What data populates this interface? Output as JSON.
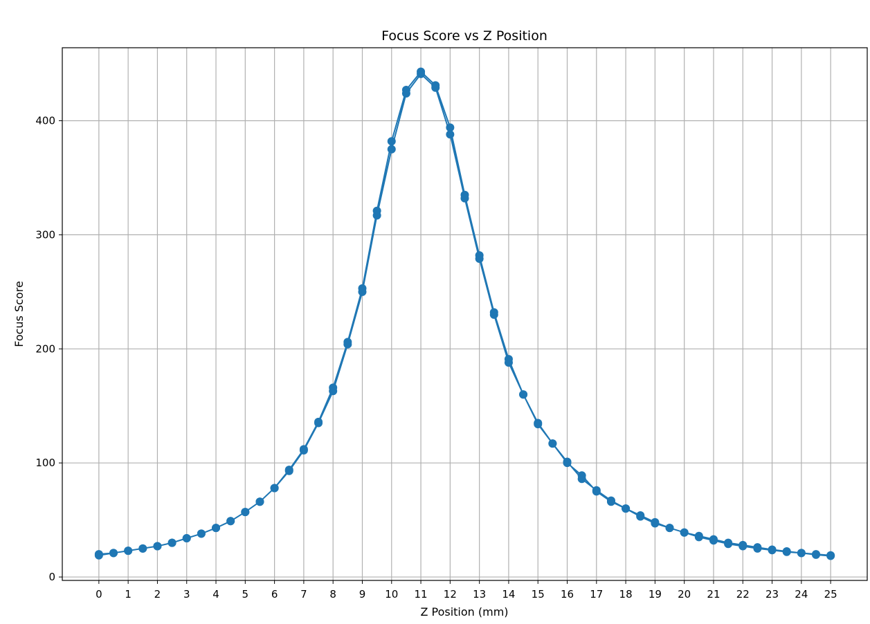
{
  "chart_data": {
    "type": "line",
    "title": "Focus Score vs Z Position",
    "xlabel": "Z Position (mm)",
    "ylabel": "Focus Score",
    "xlim": [
      -1.25,
      26.25
    ],
    "ylim": [
      -3,
      464
    ],
    "xticks": [
      0,
      1,
      2,
      3,
      4,
      5,
      6,
      7,
      8,
      9,
      10,
      11,
      12,
      13,
      14,
      15,
      16,
      17,
      18,
      19,
      20,
      21,
      22,
      23,
      24,
      25
    ],
    "yticks": [
      0,
      100,
      200,
      300,
      400
    ],
    "grid": true,
    "marker": "circle",
    "color": "#1f77b4",
    "series": [
      {
        "x": [
          0,
          0.5,
          1,
          1.5,
          2,
          2.5,
          3,
          3.5,
          4,
          4.5,
          5,
          5.5,
          6,
          6.5,
          7,
          7.5,
          8,
          8.5,
          9,
          9.5,
          10,
          10.5,
          11,
          11.5,
          12,
          12.5,
          13,
          13.5,
          14,
          14.5,
          15,
          15.5,
          16,
          16.5,
          17,
          17.5,
          18,
          18.5,
          19,
          19.5,
          20,
          20.5,
          21,
          21.5,
          22,
          22.5,
          23,
          23.5,
          24,
          24.5,
          25,
          25,
          24.5,
          24,
          23.5,
          23,
          22.5,
          22,
          21.5,
          21,
          20.5,
          20,
          19.5,
          19,
          18.5,
          18,
          17.5,
          17,
          16.5,
          16,
          15.5,
          15,
          14.5,
          14,
          13.5,
          13,
          12.5,
          12,
          11.5,
          11,
          10.5,
          10,
          9.5,
          9,
          8.5,
          8,
          7.5,
          7,
          6.5,
          6,
          5.5,
          5,
          4.5,
          4,
          3.5,
          3,
          2.5,
          2,
          1.5,
          1,
          0.5,
          0
        ],
        "y": [
          20,
          21,
          23,
          25,
          27,
          30,
          34,
          38,
          43,
          49,
          57,
          66,
          78,
          94,
          112,
          136,
          166,
          206,
          253,
          321,
          382,
          427,
          443,
          431,
          394,
          335,
          282,
          232,
          191,
          160,
          135,
          117,
          101,
          86,
          76,
          67,
          60,
          54,
          48,
          43,
          39,
          36,
          33,
          30,
          28,
          26,
          24,
          22.5,
          21,
          20,
          19,
          18.5,
          19.5,
          21,
          22,
          23.5,
          25,
          27,
          29,
          32,
          35,
          39,
          43,
          47,
          53,
          60,
          66,
          75,
          89,
          100,
          117,
          134,
          160,
          188,
          230,
          279,
          332,
          388,
          429,
          441,
          424,
          375,
          317,
          250,
          204,
          163,
          135,
          111,
          93,
          78,
          66,
          57,
          49,
          43,
          38,
          34,
          30,
          27,
          25,
          23,
          21,
          19
        ]
      }
    ]
  }
}
